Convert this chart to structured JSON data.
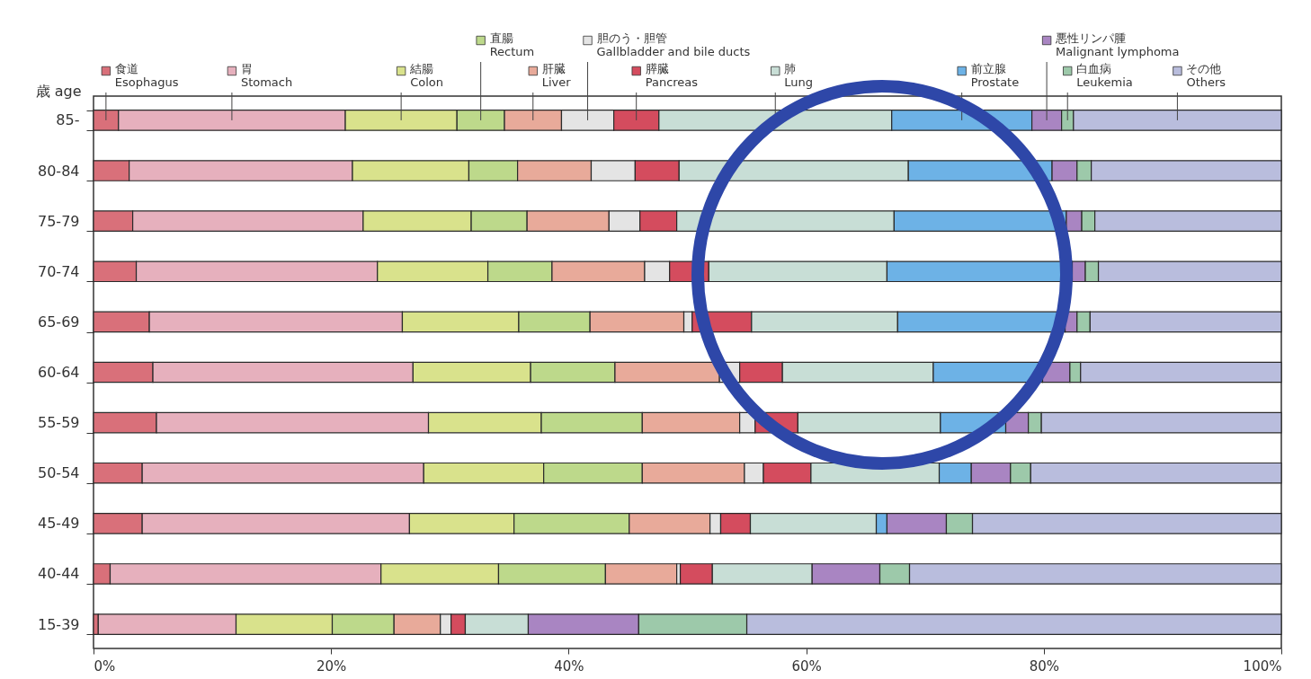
{
  "chart_data": {
    "type": "bar",
    "orientation": "horizontal",
    "stacked": true,
    "ylabel": "歳 age",
    "categories": [
      "85-",
      "80-84",
      "75-79",
      "70-74",
      "65-69",
      "60-64",
      "55-59",
      "50-54",
      "45-49",
      "40-44",
      "15-39"
    ],
    "xlim": [
      0,
      100
    ],
    "legend": "top",
    "xticks": [
      {
        "value": 0,
        "label": "0%"
      },
      {
        "value": 20,
        "label": "20%"
      },
      {
        "value": 40,
        "label": "40%"
      },
      {
        "value": 60,
        "label": "60%"
      },
      {
        "value": 80,
        "label": "80%"
      },
      {
        "value": 100,
        "label": "100%"
      }
    ],
    "series": [
      {
        "name": "食道 Esophagus",
        "color": "#d9707a",
        "values": [
          2.1,
          3.0,
          3.3,
          3.6,
          4.7,
          5.0,
          5.3,
          4.1,
          4.1,
          1.4,
          0.4
        ]
      },
      {
        "name": "胃 Stomach",
        "color": "#e6b0bd",
        "values": [
          19.1,
          18.8,
          19.4,
          20.3,
          21.3,
          21.9,
          22.9,
          23.7,
          22.5,
          22.8,
          11.6
        ]
      },
      {
        "name": "結腸 Colon",
        "color": "#d9e28c",
        "values": [
          9.4,
          9.8,
          9.1,
          9.3,
          9.8,
          9.9,
          9.5,
          10.1,
          8.8,
          9.9,
          8.1
        ]
      },
      {
        "name": "直腸 Rectum",
        "color": "#bdd98b",
        "values": [
          4.0,
          4.1,
          4.7,
          5.4,
          6.0,
          7.1,
          8.5,
          8.3,
          9.7,
          9.0,
          5.2
        ]
      },
      {
        "name": "肝臓 Liver",
        "color": "#e8aa9a",
        "values": [
          4.8,
          6.2,
          6.9,
          7.8,
          7.9,
          8.8,
          8.2,
          8.6,
          6.8,
          6.0,
          3.9
        ]
      },
      {
        "name": "胆のう・胆管 Gallbladder and bile ducts",
        "color": "#e4e4e4",
        "values": [
          4.4,
          3.7,
          2.6,
          2.1,
          0.7,
          1.7,
          1.3,
          1.6,
          0.9,
          0.3,
          0.9
        ]
      },
      {
        "name": "膵臓 Pancreas",
        "color": "#d44c5e",
        "values": [
          3.8,
          3.7,
          3.1,
          3.3,
          5.0,
          3.6,
          3.6,
          4.0,
          2.5,
          2.7,
          1.2
        ]
      },
      {
        "name": "肺 Lung",
        "color": "#c8ded6",
        "values": [
          19.6,
          19.3,
          18.3,
          15.0,
          12.3,
          12.7,
          12.0,
          10.8,
          10.6,
          8.4,
          5.3
        ]
      },
      {
        "name": "前立腺 Prostate",
        "color": "#6db2e6",
        "values": [
          11.8,
          12.1,
          14.5,
          15.6,
          14.1,
          9.2,
          5.5,
          2.7,
          0.9,
          null,
          null
        ]
      },
      {
        "name": "悪性リンパ腫 Malignant lymphoma",
        "color": "#a985c2",
        "values": [
          2.5,
          2.1,
          1.3,
          1.1,
          1.0,
          2.3,
          1.9,
          3.3,
          5.0,
          5.7,
          9.3
        ]
      },
      {
        "name": "白血病 Leukemia",
        "color": "#9dc9aa",
        "values": [
          1.0,
          1.2,
          1.1,
          1.1,
          1.1,
          0.9,
          1.1,
          1.7,
          2.2,
          2.5,
          9.1
        ]
      },
      {
        "name": "その他 Others",
        "color": "#b9bddd",
        "values": [
          17.5,
          16.0,
          15.7,
          15.4,
          16.1,
          16.9,
          20.2,
          21.1,
          26.0,
          31.3,
          45.0
        ]
      }
    ]
  }
}
